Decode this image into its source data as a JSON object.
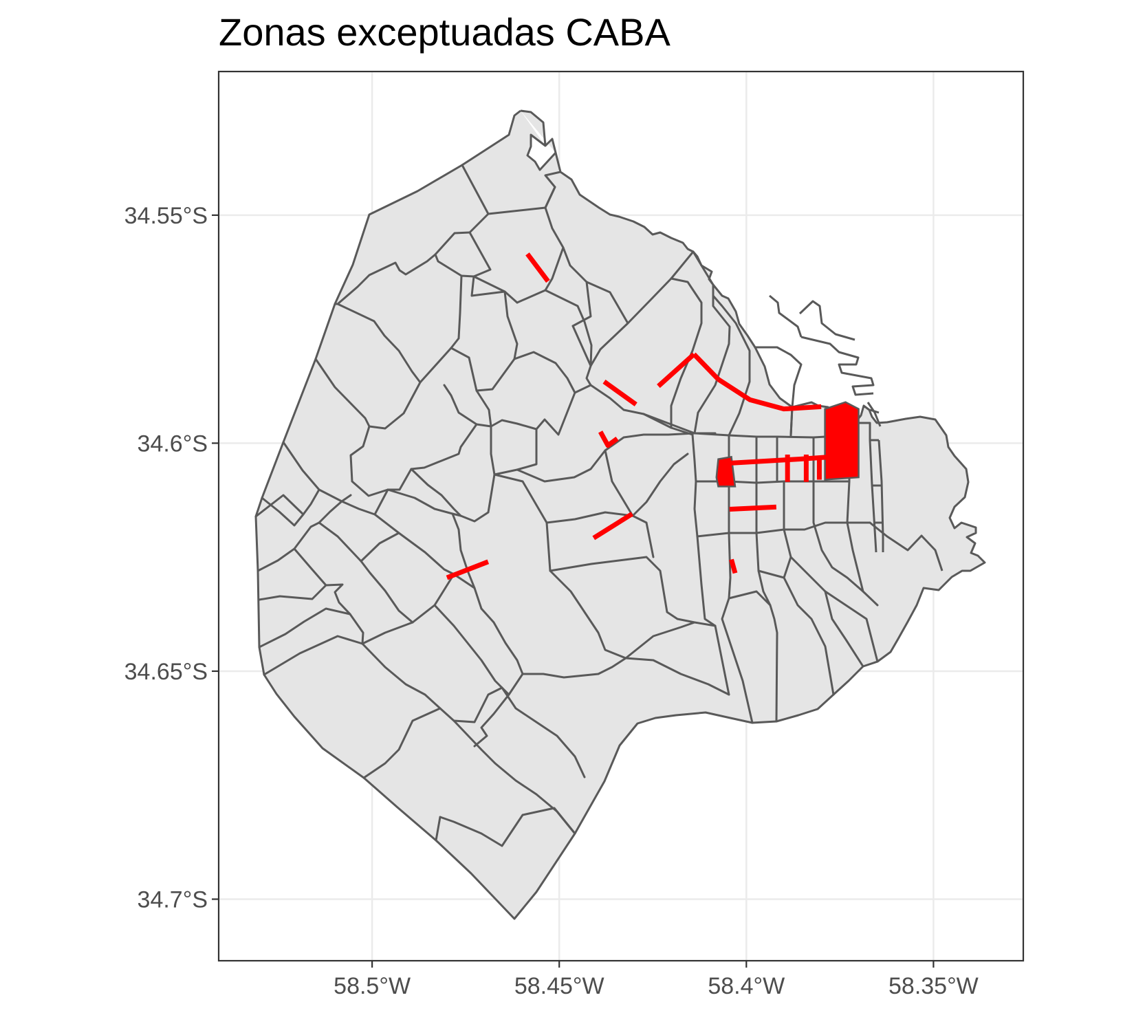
{
  "title": "Zonas exceptuadas CABA",
  "chart_data": {
    "type": "map",
    "title": "Zonas exceptuadas CABA",
    "xlabel": "",
    "ylabel": "",
    "x_ticks": [
      "58.5°W",
      "58.45°W",
      "58.4°W",
      "58.35°W"
    ],
    "y_ticks": [
      "34.55°S",
      "34.6°S",
      "34.65°S",
      "34.7°S"
    ],
    "x_tick_values": [
      -58.5,
      -58.45,
      -58.4,
      -58.35
    ],
    "y_tick_values": [
      -34.55,
      -34.6,
      -34.65,
      -34.7
    ],
    "xlim": [
      -58.541,
      -58.326
    ],
    "ylim": [
      -34.7135,
      -34.5185
    ],
    "grid": true,
    "colors": {
      "background": "#ffffff",
      "panel": "#ffffff",
      "grid": "#ebebeb",
      "land_fill": "#e5e5e5",
      "border": "#595959",
      "highlight": "#ff0000"
    },
    "highlight_lines": [
      [
        [
          -58.4585,
          -34.5585
        ],
        [
          -58.453,
          -34.5645
        ]
      ],
      [
        [
          -58.438,
          -34.5865
        ],
        [
          -58.4295,
          -34.5915
        ]
      ],
      [
        [
          -58.4235,
          -34.5875
        ],
        [
          -58.414,
          -34.5805
        ]
      ],
      [
        [
          -58.414,
          -34.5805
        ],
        [
          -58.4075,
          -34.586
        ]
      ],
      [
        [
          -58.4075,
          -34.586
        ],
        [
          -58.399,
          -34.5905
        ],
        [
          -58.39,
          -34.5925
        ],
        [
          -58.38,
          -34.592
        ]
      ],
      [
        [
          -58.439,
          -34.5975
        ],
        [
          -58.437,
          -34.6005
        ],
        [
          -58.4345,
          -34.599
        ]
      ],
      [
        [
          -58.407,
          -34.6045
        ],
        [
          -58.386,
          -34.6035
        ],
        [
          -58.377,
          -34.603
        ]
      ],
      [
        [
          -58.389,
          -34.6025
        ],
        [
          -58.389,
          -34.6085
        ]
      ],
      [
        [
          -58.384,
          -34.6025
        ],
        [
          -58.384,
          -34.6085
        ]
      ],
      [
        [
          -58.3805,
          -34.603
        ],
        [
          -58.3805,
          -34.608
        ]
      ],
      [
        [
          -58.4045,
          -34.6145
        ],
        [
          -58.392,
          -34.614
        ]
      ],
      [
        [
          -58.4408,
          -34.6208
        ],
        [
          -58.4305,
          -34.6155
        ]
      ],
      [
        [
          -58.404,
          -34.6255
        ],
        [
          -58.403,
          -34.6285
        ]
      ],
      [
        [
          -58.48,
          -34.6295
        ],
        [
          -58.469,
          -34.626
        ]
      ]
    ],
    "highlight_polygons": [
      [
        [
          -58.379,
          -34.5925
        ],
        [
          -58.3735,
          -34.591
        ],
        [
          -58.37,
          -34.5925
        ],
        [
          -58.37,
          -34.6075
        ],
        [
          -58.379,
          -34.608
        ]
      ],
      [
        [
          -58.4075,
          -34.6035
        ],
        [
          -58.404,
          -34.603
        ],
        [
          -58.403,
          -34.6095
        ],
        [
          -58.4075,
          -34.6095
        ],
        [
          -58.408,
          -34.6075
        ]
      ]
    ]
  }
}
